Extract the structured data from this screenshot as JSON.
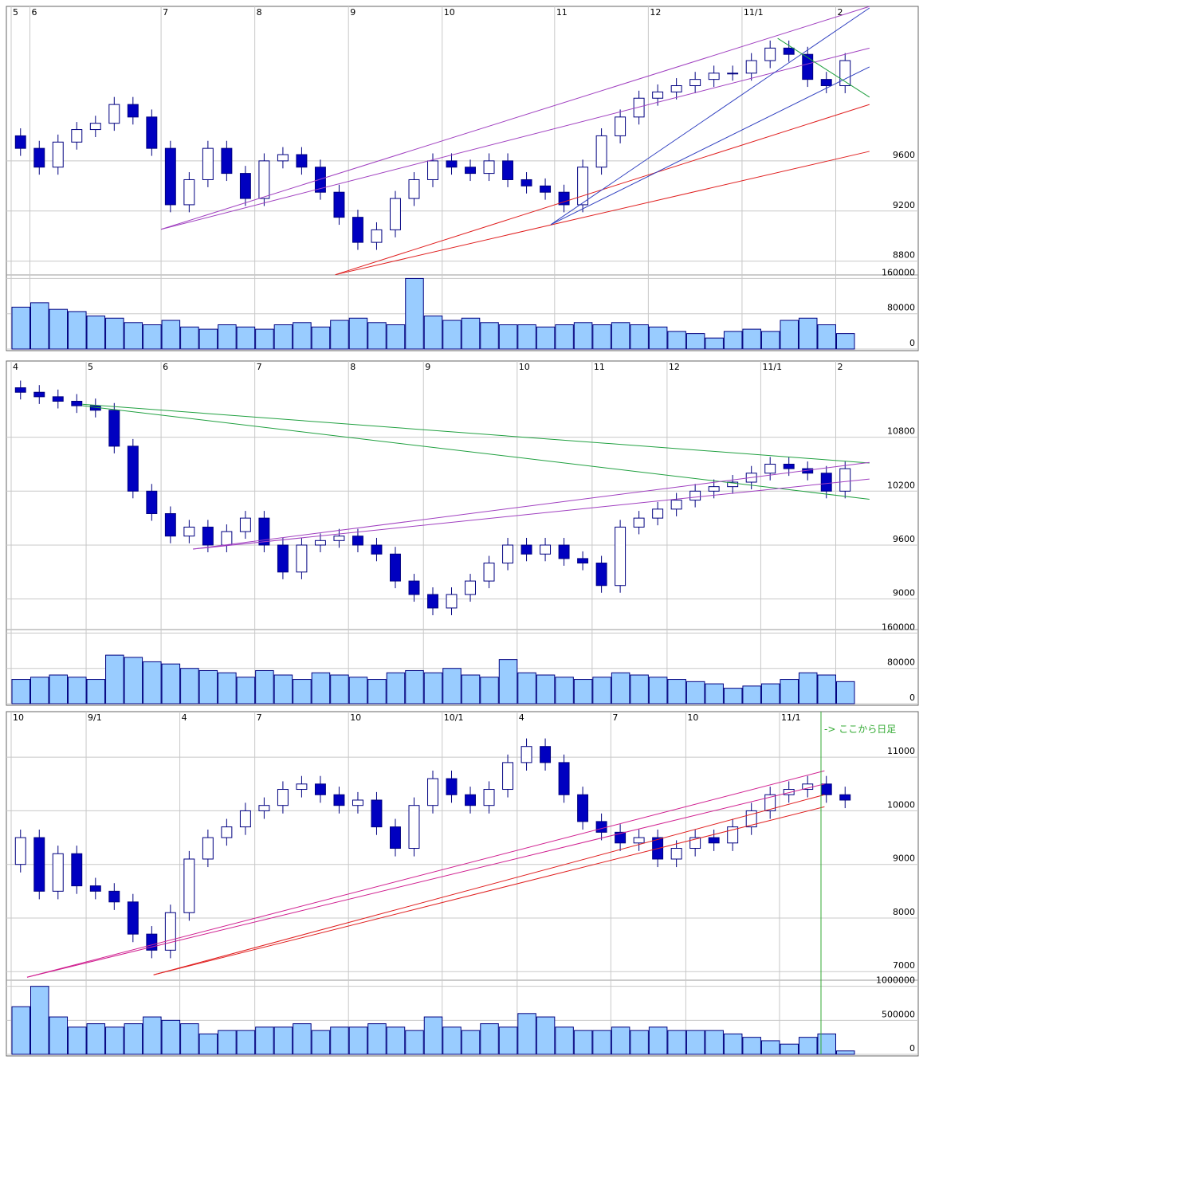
{
  "chart_data": [
    {
      "type": "candlestick",
      "grid": true,
      "up_color": "#ffffff",
      "down_color": "#0000c0",
      "edge_color": "#000080",
      "volume_color": "#99ccff",
      "categories": [
        "5",
        "6",
        null,
        null,
        null,
        null,
        null,
        null,
        "7",
        null,
        null,
        null,
        null,
        "8",
        null,
        null,
        null,
        null,
        "9",
        null,
        null,
        null,
        null,
        "10",
        null,
        null,
        null,
        null,
        null,
        "11",
        null,
        null,
        null,
        null,
        "12",
        null,
        null,
        null,
        null,
        "11/1",
        null,
        null,
        null,
        null,
        "2"
      ],
      "open": [
        9800,
        9700,
        9550,
        9750,
        9850,
        9900,
        10050,
        9950,
        9700,
        9250,
        9450,
        9700,
        9500,
        9300,
        9600,
        9650,
        9550,
        9350,
        9150,
        8950,
        9050,
        9300,
        9450,
        9600,
        9550,
        9500,
        9600,
        9450,
        9400,
        9350,
        9250,
        9550,
        9800,
        9950,
        10100,
        10150,
        10200,
        10250,
        10300,
        10300,
        10400,
        10500,
        10450,
        10250,
        10200
      ],
      "high": [
        9860,
        9760,
        9810,
        9910,
        9960,
        10110,
        10110,
        10010,
        9760,
        9510,
        9760,
        9760,
        9560,
        9660,
        9710,
        9710,
        9610,
        9410,
        9210,
        9110,
        9360,
        9510,
        9660,
        9660,
        9610,
        9660,
        9660,
        9510,
        9460,
        9410,
        9610,
        9860,
        10010,
        10160,
        10210,
        10260,
        10310,
        10360,
        10360,
        10460,
        10560,
        10560,
        10510,
        10310,
        10460
      ],
      "low": [
        9640,
        9490,
        9490,
        9690,
        9790,
        9840,
        9890,
        9640,
        9190,
        9190,
        9390,
        9440,
        9240,
        9240,
        9540,
        9490,
        9290,
        9090,
        8890,
        8890,
        8990,
        9240,
        9390,
        9490,
        9440,
        9440,
        9390,
        9340,
        9290,
        9190,
        9190,
        9490,
        9740,
        9890,
        10040,
        10090,
        10140,
        10190,
        10240,
        10240,
        10340,
        10390,
        10190,
        10140,
        10140
      ],
      "close": [
        9700,
        9550,
        9750,
        9850,
        9900,
        10050,
        9950,
        9700,
        9250,
        9450,
        9700,
        9500,
        9300,
        9600,
        9650,
        9550,
        9350,
        9150,
        8950,
        9050,
        9300,
        9450,
        9600,
        9550,
        9500,
        9600,
        9450,
        9400,
        9350,
        9250,
        9550,
        9800,
        9950,
        10100,
        10150,
        10200,
        10250,
        10300,
        10300,
        10400,
        10500,
        10450,
        10250,
        10200,
        10400
      ],
      "volume": [
        95000,
        105000,
        90000,
        85000,
        75000,
        70000,
        60000,
        55000,
        65000,
        50000,
        45000,
        55000,
        50000,
        45000,
        55000,
        60000,
        50000,
        65000,
        70000,
        60000,
        55000,
        160000,
        75000,
        65000,
        70000,
        60000,
        55000,
        55000,
        50000,
        55000,
        60000,
        55000,
        60000,
        55000,
        50000,
        40000,
        35000,
        25000,
        40000,
        45000,
        40000,
        65000,
        70000,
        55000,
        35000
      ],
      "ylim": [
        8690,
        10820
      ],
      "yticks": [
        8800,
        9200,
        9600
      ],
      "volume_ylim": [
        0,
        168000
      ],
      "volume_yticks": [
        0,
        80000,
        160000
      ],
      "lines": [
        {
          "color": "#a040c0",
          "x": [
            8,
            45.8
          ],
          "y": [
            9054,
            10832
          ]
        },
        {
          "color": "#a040c0",
          "x": [
            8,
            45.8
          ],
          "y": [
            9054,
            10500
          ]
        },
        {
          "color": "#e02020",
          "x": [
            17.3,
            45.8
          ],
          "y": [
            8692,
            9676
          ]
        },
        {
          "color": "#e02020",
          "x": [
            17.3,
            45.8
          ],
          "y": [
            8692,
            10050
          ]
        },
        {
          "color": "#3040c0",
          "x": [
            28.8,
            45.8
          ],
          "y": [
            9092,
            10820
          ]
        },
        {
          "color": "#3040c0",
          "x": [
            28.8,
            45.8
          ],
          "y": [
            9092,
            10350
          ]
        },
        {
          "color": "#20a040",
          "x": [
            40.9,
            45.8
          ],
          "y": [
            10578,
            10108
          ]
        }
      ]
    },
    {
      "type": "candlestick",
      "grid": true,
      "up_color": "#ffffff",
      "down_color": "#0000c0",
      "edge_color": "#000080",
      "volume_color": "#99ccff",
      "categories": [
        "4",
        null,
        null,
        null,
        "5",
        null,
        null,
        null,
        "6",
        null,
        null,
        null,
        null,
        "7",
        null,
        null,
        null,
        null,
        "8",
        null,
        null,
        null,
        "9",
        null,
        null,
        null,
        null,
        "10",
        null,
        null,
        null,
        "11",
        null,
        null,
        null,
        "12",
        null,
        null,
        null,
        null,
        "11/1",
        null,
        null,
        null,
        "2"
      ],
      "open": [
        11350,
        11300,
        11250,
        11200,
        11150,
        11100,
        10700,
        10200,
        9950,
        9700,
        9800,
        9600,
        9750,
        9900,
        9600,
        9300,
        9600,
        9650,
        9700,
        9600,
        9500,
        9200,
        9050,
        8900,
        9050,
        9200,
        9400,
        9600,
        9500,
        9600,
        9450,
        9400,
        9150,
        9800,
        9900,
        10000,
        10100,
        10200,
        10250,
        10300,
        10400,
        10500,
        10450,
        10400,
        10200
      ],
      "high": [
        11430,
        11380,
        11330,
        11280,
        11230,
        11180,
        10780,
        10280,
        10030,
        9880,
        9880,
        9830,
        9980,
        9980,
        9680,
        9680,
        9730,
        9780,
        9780,
        9680,
        9580,
        9280,
        9130,
        9130,
        9280,
        9480,
        9680,
        9680,
        9680,
        9680,
        9530,
        9480,
        9880,
        9980,
        10080,
        10180,
        10280,
        10330,
        10380,
        10480,
        10580,
        10580,
        10530,
        10480,
        10530
      ],
      "low": [
        11220,
        11170,
        11120,
        11070,
        11020,
        10620,
        10120,
        9870,
        9620,
        9620,
        9520,
        9520,
        9670,
        9520,
        9220,
        9220,
        9520,
        9570,
        9520,
        9420,
        9120,
        8970,
        8820,
        8820,
        8970,
        9120,
        9320,
        9420,
        9420,
        9370,
        9320,
        9070,
        9070,
        9720,
        9820,
        9920,
        10020,
        10120,
        10170,
        10220,
        10320,
        10370,
        10320,
        10120,
        10120
      ],
      "close": [
        11300,
        11250,
        11200,
        11150,
        11100,
        10700,
        10200,
        9950,
        9700,
        9800,
        9600,
        9750,
        9900,
        9600,
        9300,
        9600,
        9650,
        9700,
        9600,
        9500,
        9200,
        9050,
        8900,
        9050,
        9200,
        9400,
        9600,
        9500,
        9600,
        9450,
        9400,
        9150,
        9800,
        9900,
        10000,
        10100,
        10200,
        10250,
        10300,
        10400,
        10500,
        10450,
        10400,
        10200,
        10450
      ],
      "volume": [
        55000,
        60000,
        65000,
        60000,
        55000,
        110000,
        105000,
        95000,
        90000,
        80000,
        75000,
        70000,
        60000,
        75000,
        65000,
        55000,
        70000,
        65000,
        60000,
        55000,
        70000,
        75000,
        70000,
        80000,
        65000,
        60000,
        100000,
        70000,
        65000,
        60000,
        55000,
        60000,
        70000,
        65000,
        60000,
        55000,
        50000,
        45000,
        35000,
        40000,
        45000,
        55000,
        70000,
        65000,
        50000
      ],
      "ylim": [
        8660,
        11630
      ],
      "yticks": [
        9000,
        9600,
        10200,
        10800
      ],
      "volume_ylim": [
        0,
        168000
      ],
      "volume_yticks": [
        0,
        80000,
        160000
      ],
      "lines": [
        {
          "color": "#20a040",
          "x": [
            3.8,
            45.8
          ],
          "y": [
            11167,
            10513
          ]
        },
        {
          "color": "#20a040",
          "x": [
            3.8,
            45.8
          ],
          "y": [
            11150,
            10110
          ]
        },
        {
          "color": "#a040c0",
          "x": [
            9.7,
            45.8
          ],
          "y": [
            9555,
            10334
          ]
        },
        {
          "color": "#a040c0",
          "x": [
            9.7,
            45.8
          ],
          "y": [
            9555,
            10520
          ]
        }
      ]
    },
    {
      "type": "candlestick",
      "grid": true,
      "up_color": "#ffffff",
      "down_color": "#0000c0",
      "edge_color": "#000080",
      "volume_color": "#99ccff",
      "categories": [
        "10",
        null,
        null,
        null,
        "9/1",
        null,
        null,
        null,
        null,
        "4",
        null,
        null,
        null,
        "7",
        null,
        null,
        null,
        null,
        "10",
        null,
        null,
        null,
        null,
        "10/1",
        null,
        null,
        null,
        "4",
        null,
        null,
        null,
        null,
        "7",
        null,
        null,
        null,
        "10",
        null,
        null,
        null,
        null,
        "11/1",
        null,
        null,
        null
      ],
      "open": [
        9000,
        9500,
        8500,
        9200,
        8600,
        8500,
        8300,
        7700,
        7400,
        8100,
        9100,
        9500,
        9700,
        10000,
        10100,
        10400,
        10500,
        10300,
        10100,
        10200,
        9700,
        9300,
        10100,
        10600,
        10300,
        10100,
        10400,
        10900,
        11200,
        10900,
        10300,
        9800,
        9600,
        9400,
        9500,
        9100,
        9300,
        9500,
        9400,
        9700,
        10000,
        10300,
        10400,
        10500,
        10300
      ],
      "high": [
        9650,
        9650,
        9350,
        9350,
        8750,
        8650,
        8450,
        7850,
        8250,
        9250,
        9650,
        9850,
        10150,
        10250,
        10550,
        10650,
        10650,
        10450,
        10350,
        10350,
        9850,
        10250,
        10750,
        10750,
        10450,
        10550,
        11050,
        11350,
        11350,
        11050,
        10450,
        9950,
        9750,
        9650,
        9650,
        9450,
        9650,
        9650,
        9850,
        10150,
        10450,
        10550,
        10650,
        10650,
        10450
      ],
      "low": [
        8850,
        8350,
        8350,
        8450,
        8350,
        8150,
        7550,
        7250,
        7250,
        7950,
        8950,
        9350,
        9550,
        9850,
        9950,
        10250,
        10150,
        9950,
        9950,
        9550,
        9150,
        9150,
        9950,
        10150,
        9950,
        9950,
        10250,
        10750,
        10750,
        10150,
        9650,
        9450,
        9250,
        9250,
        8950,
        8950,
        9150,
        9250,
        9250,
        9550,
        9850,
        10150,
        10250,
        10150,
        10050
      ],
      "close": [
        9500,
        8500,
        9200,
        8600,
        8500,
        8300,
        7700,
        7400,
        8100,
        9100,
        9500,
        9700,
        10000,
        10100,
        10400,
        10500,
        10300,
        10100,
        10200,
        9700,
        9300,
        10100,
        10600,
        10300,
        10100,
        10400,
        10900,
        11200,
        10900,
        10300,
        9800,
        9600,
        9400,
        9500,
        9100,
        9300,
        9500,
        9400,
        9700,
        10000,
        10300,
        10400,
        10500,
        10300,
        10200
      ],
      "volume": [
        700000,
        1000000,
        550000,
        400000,
        450000,
        400000,
        450000,
        550000,
        500000,
        450000,
        300000,
        350000,
        350000,
        400000,
        400000,
        450000,
        350000,
        400000,
        400000,
        450000,
        400000,
        350000,
        550000,
        400000,
        350000,
        450000,
        400000,
        600000,
        550000,
        400000,
        350000,
        350000,
        400000,
        350000,
        400000,
        350000,
        350000,
        350000,
        300000,
        250000,
        200000,
        150000,
        250000,
        300000,
        50000
      ],
      "ylim": [
        6840,
        11820
      ],
      "yticks": [
        7000,
        8000,
        9000,
        10000,
        11000
      ],
      "volume_ylim": [
        0,
        1090000
      ],
      "volume_yticks": [
        0,
        500000,
        1000000
      ],
      "annotation": "-> ここから日足",
      "lines": [
        {
          "color": "#d02090",
          "x": [
            0.85,
            43.4
          ],
          "y": [
            6896,
            10746
          ]
        },
        {
          "color": "#d02090",
          "x": [
            0.85,
            43.4
          ],
          "y": [
            6896,
            10500
          ]
        },
        {
          "color": "#e02020",
          "x": [
            7.6,
            43.4
          ],
          "y": [
            6940,
            10075
          ]
        },
        {
          "color": "#e02020",
          "x": [
            7.6,
            43.4
          ],
          "y": [
            6940,
            10300
          ]
        }
      ]
    }
  ]
}
